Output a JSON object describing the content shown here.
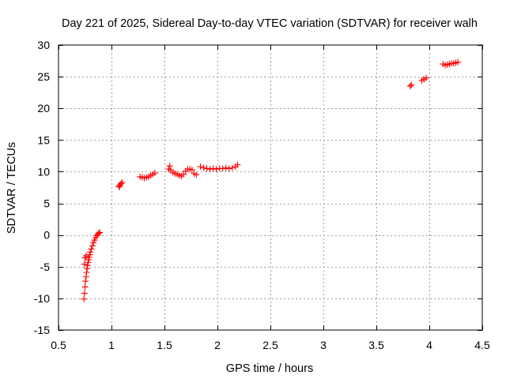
{
  "chart_data": {
    "type": "scatter",
    "title": "Day 221 of 2025, Sidereal Day-to-day VTEC variation (SDTVAR) for receiver walh",
    "xlabel": "GPS time / hours",
    "ylabel": "SDTVAR / TECUs",
    "xlim": [
      0.5,
      4.5
    ],
    "ylim": [
      -15,
      30
    ],
    "grid": true,
    "marker": "plus",
    "marker_color": "#ff0000",
    "x_ticks": [
      0.5,
      1.0,
      1.5,
      2.0,
      2.5,
      3.0,
      3.5,
      4.0,
      4.5
    ],
    "x_tick_labels": [
      "0.5",
      "1",
      "1.5",
      "2",
      "2.5",
      "3",
      "3.5",
      "4",
      "4.5"
    ],
    "y_ticks": [
      -15,
      -10,
      -5,
      0,
      5,
      10,
      15,
      20,
      25,
      30
    ],
    "y_tick_labels": [
      "-15",
      "-10",
      "-5",
      "0",
      "5",
      "10",
      "15",
      "20",
      "25",
      "30"
    ],
    "series": [
      {
        "name": "SDTVAR",
        "points": [
          [
            0.74,
            -10.1
          ],
          [
            0.745,
            -9.2
          ],
          [
            0.75,
            -8.2
          ],
          [
            0.755,
            -7.3
          ],
          [
            0.76,
            -6.6
          ],
          [
            0.765,
            -5.9
          ],
          [
            0.77,
            -5.3
          ],
          [
            0.775,
            -4.8
          ],
          [
            0.78,
            -4.3
          ],
          [
            0.785,
            -3.9
          ],
          [
            0.79,
            -3.5
          ],
          [
            0.795,
            -3.1
          ],
          [
            0.8,
            -2.7
          ],
          [
            0.81,
            -2.2
          ],
          [
            0.82,
            -1.7
          ],
          [
            0.83,
            -1.2
          ],
          [
            0.84,
            -0.8
          ],
          [
            0.85,
            -0.4
          ],
          [
            0.86,
            -0.1
          ],
          [
            0.87,
            0.1
          ],
          [
            0.88,
            0.3
          ],
          [
            0.89,
            0.4
          ],
          [
            0.745,
            -4.6
          ],
          [
            0.75,
            -3.6
          ],
          [
            0.76,
            -3.3
          ],
          [
            1.07,
            7.7
          ],
          [
            1.08,
            7.9
          ],
          [
            1.09,
            8.1
          ],
          [
            1.1,
            8.3
          ],
          [
            1.075,
            7.6
          ],
          [
            1.27,
            9.2
          ],
          [
            1.29,
            9.1
          ],
          [
            1.31,
            9.0
          ],
          [
            1.33,
            9.1
          ],
          [
            1.35,
            9.2
          ],
          [
            1.37,
            9.4
          ],
          [
            1.39,
            9.6
          ],
          [
            1.41,
            9.8
          ],
          [
            1.54,
            10.4
          ],
          [
            1.55,
            10.9
          ],
          [
            1.56,
            10.2
          ],
          [
            1.58,
            9.9
          ],
          [
            1.6,
            9.7
          ],
          [
            1.62,
            9.6
          ],
          [
            1.64,
            9.4
          ],
          [
            1.66,
            9.3
          ],
          [
            1.68,
            9.6
          ],
          [
            1.7,
            10.1
          ],
          [
            1.72,
            10.4
          ],
          [
            1.74,
            10.4
          ],
          [
            1.76,
            10.3
          ],
          [
            1.78,
            9.7
          ],
          [
            1.8,
            9.5
          ],
          [
            1.84,
            10.8
          ],
          [
            1.87,
            10.6
          ],
          [
            1.9,
            10.5
          ],
          [
            1.93,
            10.4
          ],
          [
            1.96,
            10.5
          ],
          [
            1.99,
            10.4
          ],
          [
            2.02,
            10.5
          ],
          [
            2.05,
            10.5
          ],
          [
            2.08,
            10.6
          ],
          [
            2.11,
            10.5
          ],
          [
            2.14,
            10.6
          ],
          [
            2.17,
            10.8
          ],
          [
            2.19,
            11.1
          ],
          [
            3.82,
            23.5
          ],
          [
            3.83,
            23.7
          ],
          [
            3.93,
            24.4
          ],
          [
            3.95,
            24.6
          ],
          [
            3.97,
            24.8
          ],
          [
            4.13,
            27.0
          ],
          [
            4.15,
            26.8
          ],
          [
            4.17,
            26.9
          ],
          [
            4.19,
            27.0
          ],
          [
            4.21,
            27.1
          ],
          [
            4.23,
            27.1
          ],
          [
            4.25,
            27.2
          ],
          [
            4.27,
            27.3
          ]
        ]
      }
    ]
  }
}
